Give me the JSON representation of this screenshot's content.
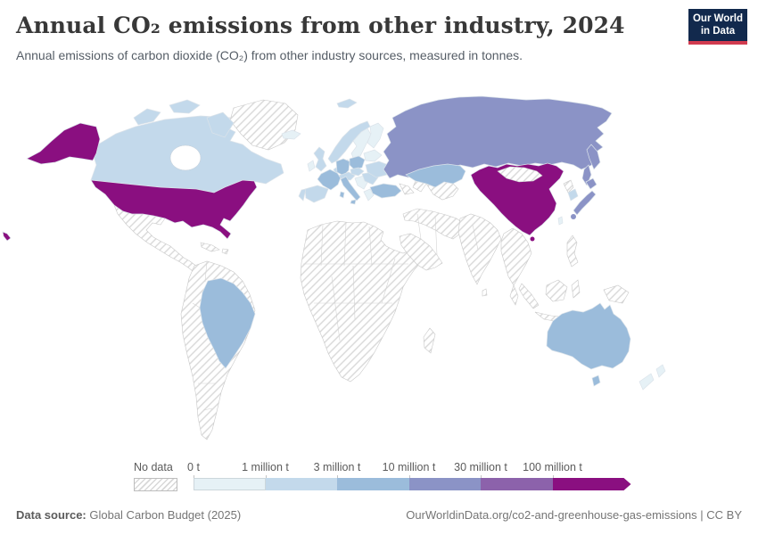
{
  "header": {
    "title": "Annual CO₂ emissions from other industry, 2024",
    "subtitle": "Annual emissions of carbon dioxide (CO₂) from other industry sources, measured in tonnes.",
    "logo": {
      "line1": "Our World",
      "line2": "in Data",
      "bg": "#12294d",
      "accent": "#d13b4f"
    }
  },
  "legend": {
    "no_data_label": "No data",
    "ticks": [
      "0 t",
      "1 million t",
      "3 million t",
      "10 million t",
      "30 million t",
      "100 million t"
    ],
    "bucket_colors": [
      "#e6f1f6",
      "#c3d9eb",
      "#9bbcdb",
      "#8b93c6",
      "#8c62ab",
      "#8a0f80"
    ]
  },
  "footer": {
    "datasource_label": "Data source:",
    "datasource_text": " Global Carbon Budget (2025)",
    "credit": "OurWorldinData.org/co2-and-greenhouse-gas-emissions | CC BY"
  },
  "map": {
    "country_buckets": {
      "alaska": 5,
      "usa": 5,
      "hawaii": 5,
      "canada": 1,
      "canada-arctic-1": 1,
      "canada-arctic-2": 1,
      "canada-baffin": 1,
      "greenland": "nd",
      "mexico": "nd",
      "cuba": "nd",
      "hispaniola": "nd",
      "south-america": "nd",
      "brazil": 2,
      "iceland": 0,
      "svalbard": 1,
      "norway": 1,
      "sweden": 0,
      "finland": 0,
      "denmark": 0,
      "uk": 1,
      "ireland": 0,
      "benelux": 1,
      "germany": 2,
      "poland": 2,
      "france": 2,
      "spain": 1,
      "portugal": 1,
      "italy": 2,
      "alpine": 1,
      "czech-region": 1,
      "balkans": 0,
      "greece": 0,
      "romania-bulgaria": 1,
      "ukraine": 1,
      "belarus-baltics": 0,
      "turkey": 2,
      "caucasus": "nd",
      "africa": "nd",
      "madagascar": "nd",
      "arabia": "nd",
      "iran-region": "nd",
      "central-asia-1": "nd",
      "central-asia-2": "nd",
      "kazakhstan": 2,
      "russia": 3,
      "kamchatka": 3,
      "sakhalin": 3,
      "mongolia": "nd",
      "china": 5,
      "hainan": 5,
      "taiwan": 0,
      "north-korea": "nd",
      "south-korea": 1,
      "japan-hokkaido": 3,
      "japan-honshu": 3,
      "japan-kyushu": 3,
      "india": "nd",
      "sri-lanka": "nd",
      "indochina": "nd",
      "malay": "nd",
      "sumatra": "nd",
      "java": "nd",
      "borneo": "nd",
      "sulawesi": "nd",
      "new-guinea": "nd",
      "philippines": "nd",
      "australia": 2,
      "tasmania": 2,
      "nz-north": 0,
      "nz-south": 0
    }
  },
  "chart_data": {
    "type": "choropleth",
    "title": "Annual CO₂ emissions from other industry, 2024",
    "unit": "tonnes",
    "legend_bins": [
      {
        "range": "0 t – 1 million t",
        "color": "#e6f1f6"
      },
      {
        "range": "1 – 3 million t",
        "color": "#c3d9eb"
      },
      {
        "range": "3 – 10 million t",
        "color": "#9bbcdb"
      },
      {
        "range": "10 – 30 million t",
        "color": "#8b93c6"
      },
      {
        "range": "30 – 100 million t",
        "color": "#8c62ab"
      },
      {
        "range": "100 million t and above",
        "color": "#8a0f80"
      }
    ],
    "countries": [
      {
        "entity": "United States",
        "bin": "100 million t+"
      },
      {
        "entity": "China",
        "bin": "100 million t+"
      },
      {
        "entity": "Russia",
        "bin": "10–30 million t"
      },
      {
        "entity": "Japan",
        "bin": "10–30 million t"
      },
      {
        "entity": "Brazil",
        "bin": "3–10 million t"
      },
      {
        "entity": "Australia",
        "bin": "3–10 million t"
      },
      {
        "entity": "Turkey",
        "bin": "3–10 million t"
      },
      {
        "entity": "Germany",
        "bin": "3–10 million t"
      },
      {
        "entity": "France",
        "bin": "3–10 million t"
      },
      {
        "entity": "Poland",
        "bin": "3–10 million t"
      },
      {
        "entity": "Italy",
        "bin": "3–10 million t"
      },
      {
        "entity": "Kazakhstan",
        "bin": "3–10 million t"
      },
      {
        "entity": "Canada",
        "bin": "1–3 million t"
      },
      {
        "entity": "United Kingdom",
        "bin": "1–3 million t"
      },
      {
        "entity": "Spain",
        "bin": "1–3 million t"
      },
      {
        "entity": "Ukraine",
        "bin": "1–3 million t"
      },
      {
        "entity": "South Korea",
        "bin": "1–3 million t"
      },
      {
        "entity": "Norway",
        "bin": "1–3 million t"
      },
      {
        "entity": "Sweden",
        "bin": "0–1 million t"
      },
      {
        "entity": "Finland",
        "bin": "0–1 million t"
      },
      {
        "entity": "New Zealand",
        "bin": "0–1 million t"
      },
      {
        "entity": "Iceland",
        "bin": "0–1 million t"
      },
      {
        "entity": "Ireland",
        "bin": "0–1 million t"
      }
    ],
    "no_data_regions": [
      "Greenland",
      "Mexico",
      "Central America",
      "Caribbean",
      "South America except Brazil",
      "Africa",
      "Middle East",
      "India",
      "Southeast Asia",
      "Mongolia",
      "North Korea",
      "New Guinea"
    ]
  }
}
